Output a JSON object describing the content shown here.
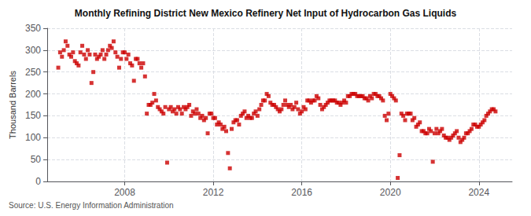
{
  "chart_data": {
    "type": "scatter",
    "title": "Monthly Refining District New Mexico Refinery Net Input of Hydrocarbon Gas Liquids",
    "ylabel": "Thousand Barrels",
    "annotations": [
      "Source: U.S. Energy Information Administration"
    ],
    "color": "#cc0000",
    "marker": "square",
    "grid": true,
    "xlim": [
      2004.5,
      2025.5
    ],
    "xticks": [
      2008,
      2012,
      2016,
      2020,
      2024
    ],
    "ylim": [
      0,
      350
    ],
    "yticks": [
      0,
      50,
      100,
      150,
      200,
      250,
      300,
      350
    ],
    "x": [
      2005.0,
      2005.083,
      2005.167,
      2005.25,
      2005.333,
      2005.417,
      2005.5,
      2005.583,
      2005.667,
      2005.75,
      2005.833,
      2005.917,
      2006.0,
      2006.083,
      2006.167,
      2006.25,
      2006.333,
      2006.417,
      2006.5,
      2006.583,
      2006.667,
      2006.75,
      2006.833,
      2006.917,
      2007.0,
      2007.083,
      2007.167,
      2007.25,
      2007.333,
      2007.417,
      2007.5,
      2007.583,
      2007.667,
      2007.75,
      2007.833,
      2007.917,
      2008.0,
      2008.083,
      2008.167,
      2008.25,
      2008.333,
      2008.417,
      2008.5,
      2008.583,
      2008.667,
      2008.75,
      2008.833,
      2008.917,
      2009.0,
      2009.083,
      2009.167,
      2009.25,
      2009.333,
      2009.417,
      2009.5,
      2009.583,
      2009.667,
      2009.75,
      2009.833,
      2009.917,
      2010.0,
      2010.083,
      2010.167,
      2010.25,
      2010.333,
      2010.417,
      2010.5,
      2010.583,
      2010.667,
      2010.75,
      2010.833,
      2010.917,
      2011.0,
      2011.083,
      2011.167,
      2011.25,
      2011.333,
      2011.417,
      2011.5,
      2011.583,
      2011.667,
      2011.75,
      2011.833,
      2011.917,
      2012.0,
      2012.083,
      2012.167,
      2012.25,
      2012.333,
      2012.417,
      2012.5,
      2012.583,
      2012.667,
      2012.75,
      2012.833,
      2012.917,
      2013.0,
      2013.083,
      2013.167,
      2013.25,
      2013.333,
      2013.417,
      2013.5,
      2013.583,
      2013.667,
      2013.75,
      2013.833,
      2013.917,
      2014.0,
      2014.083,
      2014.167,
      2014.25,
      2014.333,
      2014.417,
      2014.5,
      2014.583,
      2014.667,
      2014.75,
      2014.833,
      2014.917,
      2015.0,
      2015.083,
      2015.167,
      2015.25,
      2015.333,
      2015.417,
      2015.5,
      2015.583,
      2015.667,
      2015.75,
      2015.833,
      2015.917,
      2016.0,
      2016.083,
      2016.167,
      2016.25,
      2016.333,
      2016.417,
      2016.5,
      2016.583,
      2016.667,
      2016.75,
      2016.833,
      2016.917,
      2017.0,
      2017.083,
      2017.167,
      2017.25,
      2017.333,
      2017.417,
      2017.5,
      2017.583,
      2017.667,
      2017.75,
      2017.833,
      2017.917,
      2018.0,
      2018.083,
      2018.167,
      2018.25,
      2018.333,
      2018.417,
      2018.5,
      2018.583,
      2018.667,
      2018.75,
      2018.833,
      2018.917,
      2019.0,
      2019.083,
      2019.167,
      2019.25,
      2019.333,
      2019.417,
      2019.5,
      2019.583,
      2019.667,
      2019.75,
      2019.833,
      2019.917,
      2020.0,
      2020.083,
      2020.167,
      2020.25,
      2020.333,
      2020.417,
      2020.5,
      2020.583,
      2020.667,
      2020.75,
      2020.833,
      2020.917,
      2021.0,
      2021.083,
      2021.167,
      2021.25,
      2021.333,
      2021.417,
      2021.5,
      2021.583,
      2021.667,
      2021.75,
      2021.833,
      2021.917,
      2022.0,
      2022.083,
      2022.167,
      2022.25,
      2022.333,
      2022.417,
      2022.5,
      2022.583,
      2022.667,
      2022.75,
      2022.833,
      2022.917,
      2023.0,
      2023.083,
      2023.167,
      2023.25,
      2023.333,
      2023.417,
      2023.5,
      2023.583,
      2023.667,
      2023.75,
      2023.833,
      2023.917,
      2024.0,
      2024.083,
      2024.167,
      2024.25,
      2024.333,
      2024.417,
      2024.5,
      2024.583,
      2024.667,
      2024.75
    ],
    "values": [
      260,
      295,
      285,
      300,
      320,
      310,
      290,
      285,
      295,
      275,
      270,
      265,
      295,
      310,
      290,
      280,
      300,
      290,
      225,
      250,
      290,
      280,
      285,
      290,
      300,
      280,
      290,
      300,
      310,
      305,
      320,
      295,
      285,
      260,
      280,
      295,
      295,
      280,
      290,
      270,
      265,
      230,
      280,
      280,
      270,
      260,
      270,
      240,
      155,
      175,
      175,
      180,
      200,
      185,
      170,
      165,
      160,
      155,
      170,
      43,
      165,
      170,
      160,
      165,
      155,
      170,
      165,
      155,
      170,
      165,
      170,
      175,
      150,
      160,
      155,
      165,
      155,
      145,
      150,
      140,
      145,
      110,
      155,
      155,
      145,
      145,
      130,
      135,
      130,
      120,
      125,
      115,
      65,
      30,
      120,
      135,
      140,
      140,
      130,
      150,
      155,
      160,
      145,
      150,
      145,
      145,
      155,
      160,
      150,
      165,
      175,
      185,
      185,
      200,
      195,
      180,
      175,
      175,
      170,
      165,
      160,
      165,
      175,
      185,
      175,
      170,
      175,
      165,
      170,
      180,
      165,
      155,
      160,
      170,
      165,
      185,
      185,
      180,
      185,
      185,
      195,
      190,
      175,
      165,
      170,
      175,
      180,
      185,
      185,
      185,
      185,
      180,
      180,
      175,
      180,
      185,
      180,
      195,
      195,
      200,
      200,
      200,
      195,
      195,
      195,
      195,
      190,
      190,
      185,
      195,
      190,
      200,
      200,
      195,
      195,
      190,
      185,
      150,
      140,
      155,
      200,
      195,
      190,
      185,
      8,
      60,
      155,
      150,
      140,
      155,
      155,
      155,
      140,
      145,
      125,
      130,
      135,
      115,
      115,
      110,
      110,
      120,
      115,
      45,
      110,
      120,
      110,
      115,
      120,
      105,
      100,
      100,
      95,
      100,
      105,
      110,
      115,
      100,
      90,
      95,
      100,
      110,
      110,
      115,
      120,
      130,
      130,
      125,
      125,
      130,
      135,
      140,
      150,
      155,
      160,
      165,
      165,
      160
    ]
  }
}
